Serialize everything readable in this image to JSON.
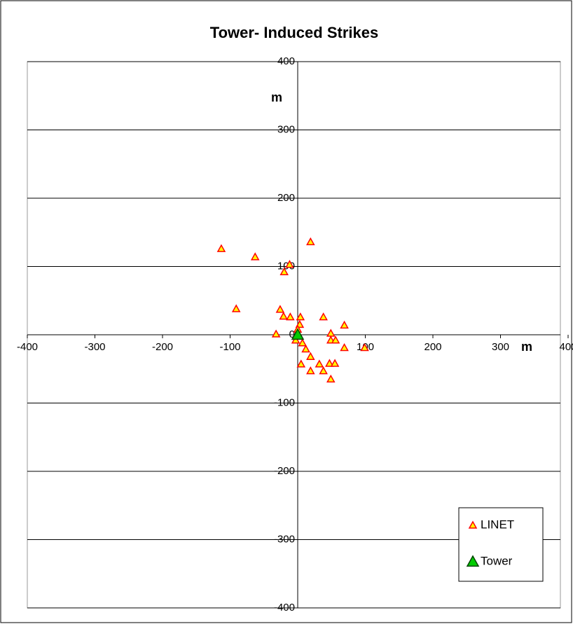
{
  "chart_data": {
    "type": "scatter",
    "title": "Tower- Induced Strikes",
    "x_label": "m",
    "y_label": "m",
    "series": [
      {
        "name": "LINET",
        "color": "#ffff00",
        "edge": "#ff0000",
        "x": [
          -113,
          -63,
          -12,
          -20,
          19,
          -91,
          -26,
          -21,
          -11,
          -32,
          4,
          3,
          0,
          -3,
          7,
          12,
          19,
          5,
          19,
          32,
          38,
          49,
          47,
          55,
          38,
          49,
          49,
          56,
          69,
          69,
          99
        ],
        "values": [
          126,
          114,
          103,
          92,
          136,
          38,
          37,
          27,
          26,
          1,
          26,
          15,
          8,
          -8,
          -12,
          -21,
          -32,
          -43,
          -53,
          -43,
          -53,
          -65,
          -42,
          -42,
          26,
          2,
          -8,
          -8,
          14,
          -19,
          -19
        ]
      },
      {
        "name": "Tower",
        "color": "#00cc00",
        "edge": "#004400",
        "x": [
          0
        ],
        "values": [
          0
        ]
      }
    ],
    "xlim": [
      -400,
      400
    ],
    "ylim": [
      -400,
      400
    ],
    "xticks": [
      -400,
      -300,
      -200,
      -100,
      100,
      200,
      300,
      400
    ],
    "yticks": [
      -400,
      -300,
      -200,
      -100,
      0,
      100,
      200,
      300,
      400
    ],
    "grid": true,
    "legend": "lower right"
  }
}
